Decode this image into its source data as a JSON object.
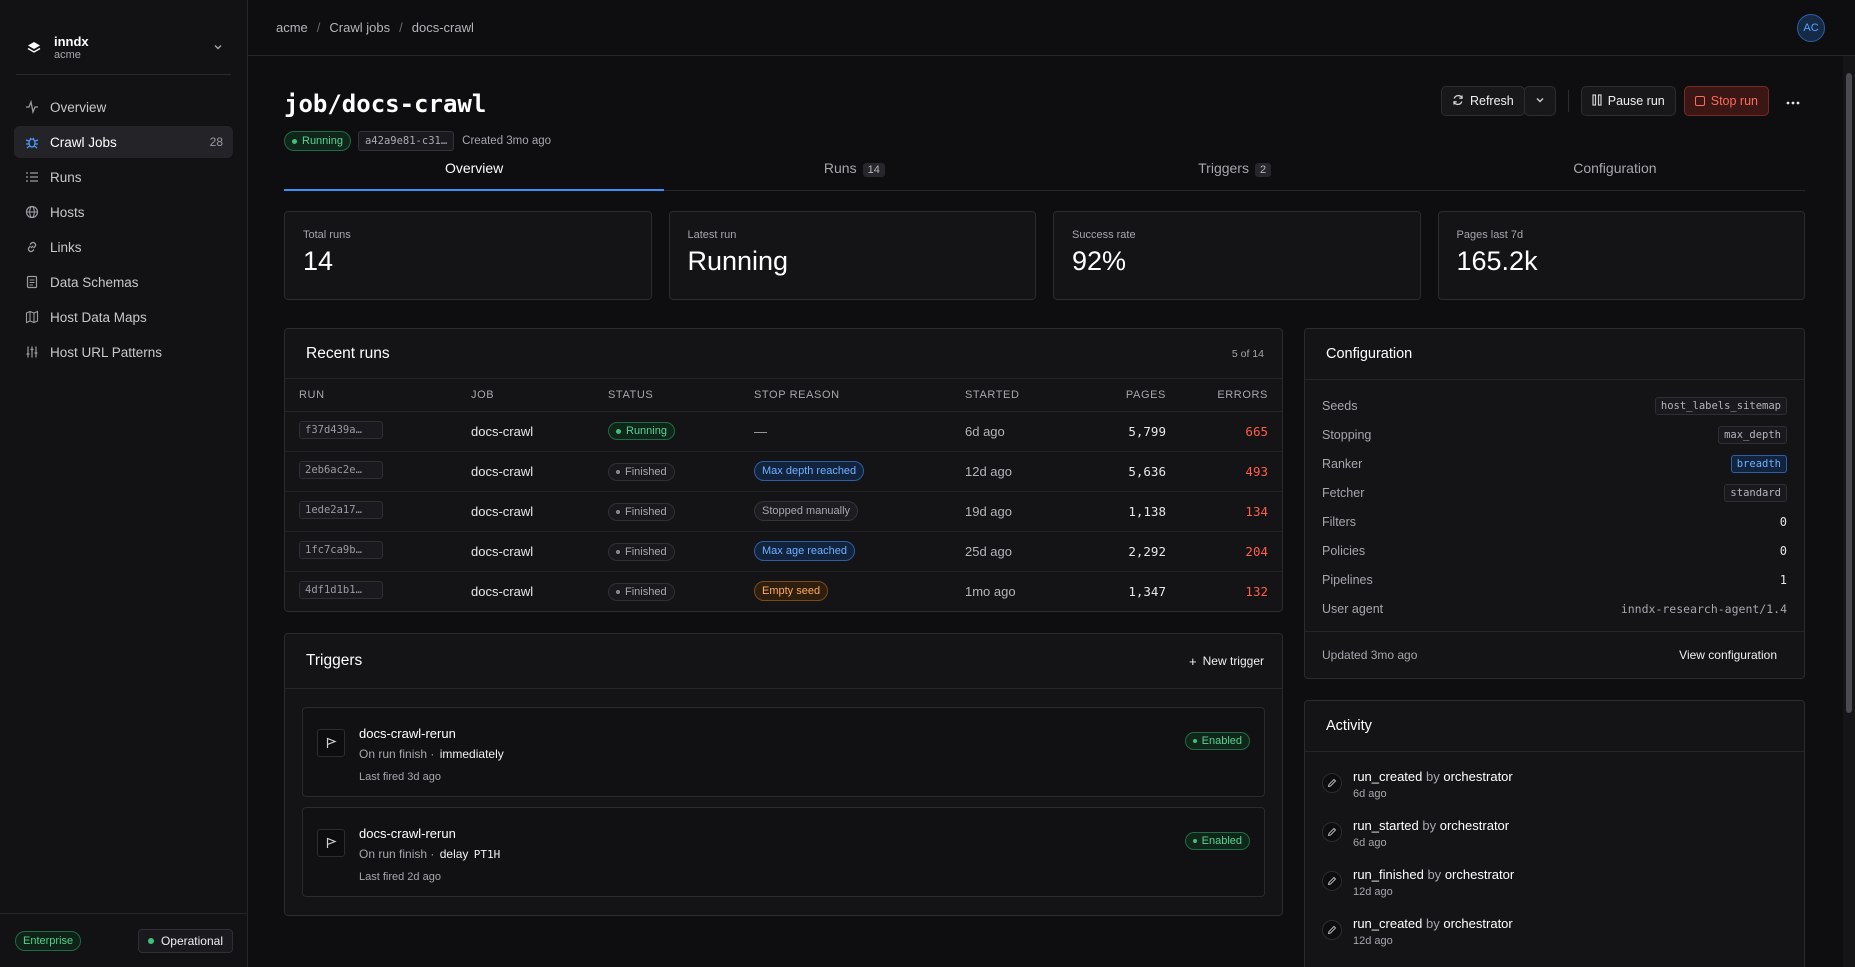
{
  "org": {
    "name": "inndx",
    "sub": "acme"
  },
  "nav": [
    {
      "label": "Overview",
      "icon": "activity-icon"
    },
    {
      "label": "Crawl Jobs",
      "icon": "bug-icon",
      "count": "28",
      "active": true
    },
    {
      "label": "Runs",
      "icon": "list-icon"
    },
    {
      "label": "Hosts",
      "icon": "globe-icon"
    },
    {
      "label": "Links",
      "icon": "link-icon"
    },
    {
      "label": "Data Schemas",
      "icon": "document-icon"
    },
    {
      "label": "Host Data Maps",
      "icon": "map-icon"
    },
    {
      "label": "Host URL Patterns",
      "icon": "sliders-icon"
    }
  ],
  "footer": {
    "plan": "Enterprise",
    "status": "Operational"
  },
  "breadcrumbs": [
    "acme",
    "Crawl jobs",
    "docs-crawl"
  ],
  "avatar": "AC",
  "page": {
    "title": "job/docs-crawl",
    "status": "Running",
    "hash": "a42a9e81-c31…",
    "created": "Created 3mo ago"
  },
  "actions": {
    "refresh": "Refresh",
    "pause": "Pause run",
    "stop": "Stop run"
  },
  "tabs": [
    {
      "label": "Overview",
      "count": ""
    },
    {
      "label": "Runs",
      "count": "14"
    },
    {
      "label": "Triggers",
      "count": "2"
    },
    {
      "label": "Configuration",
      "count": ""
    }
  ],
  "stats": [
    {
      "label": "Total runs",
      "value": "14"
    },
    {
      "label": "Latest run",
      "value": "Running"
    },
    {
      "label": "Success rate",
      "value": "92%"
    },
    {
      "label": "Pages last 7d",
      "value": "165.2k"
    }
  ],
  "recent_runs": {
    "title": "Recent runs",
    "count_label": "5 of 14",
    "columns": [
      "RUN",
      "JOB",
      "STATUS",
      "STOP REASON",
      "STARTED",
      "PAGES",
      "ERRORS"
    ],
    "rows": [
      {
        "run": "f37d439a…",
        "job": "docs-crawl",
        "status": "Running",
        "reason": "—",
        "reason_style": "none",
        "started": "6d ago",
        "pages": "5,799",
        "errors": "665"
      },
      {
        "run": "2eb6ac2e…",
        "job": "docs-crawl",
        "status": "Finished",
        "reason": "Max depth reached",
        "reason_style": "blue",
        "started": "12d ago",
        "pages": "5,636",
        "errors": "493"
      },
      {
        "run": "1ede2a17…",
        "job": "docs-crawl",
        "status": "Finished",
        "reason": "Stopped manually",
        "reason_style": "grey",
        "started": "19d ago",
        "pages": "1,138",
        "errors": "134"
      },
      {
        "run": "1fc7ca9b…",
        "job": "docs-crawl",
        "status": "Finished",
        "reason": "Max age reached",
        "reason_style": "blue",
        "started": "25d ago",
        "pages": "2,292",
        "errors": "204"
      },
      {
        "run": "4df1d1b1…",
        "job": "docs-crawl",
        "status": "Finished",
        "reason": "Empty seed",
        "reason_style": "orange",
        "started": "1mo ago",
        "pages": "1,347",
        "errors": "132"
      }
    ]
  },
  "triggers": {
    "title": "Triggers",
    "new_label": "New trigger",
    "items": [
      {
        "name": "docs-crawl-rerun",
        "when": "On run finish",
        "detail": "immediately",
        "detail_mono": "",
        "last": "Last fired 3d ago",
        "status": "Enabled"
      },
      {
        "name": "docs-crawl-rerun",
        "when": "On run finish",
        "detail": "delay",
        "detail_mono": "PT1H",
        "last": "Last fired 2d ago",
        "status": "Enabled"
      }
    ]
  },
  "configuration": {
    "title": "Configuration",
    "rows": [
      {
        "key": "Seeds",
        "value": "host_labels_sitemap",
        "style": "chip"
      },
      {
        "key": "Stopping",
        "value": "max_depth",
        "style": "chip"
      },
      {
        "key": "Ranker",
        "value": "breadth",
        "style": "chip-blue"
      },
      {
        "key": "Fetcher",
        "value": "standard",
        "style": "chip"
      },
      {
        "key": "Filters",
        "value": "0",
        "style": "plain"
      },
      {
        "key": "Policies",
        "value": "0",
        "style": "plain"
      },
      {
        "key": "Pipelines",
        "value": "1",
        "style": "plain"
      },
      {
        "key": "User agent",
        "value": "inndx-research-agent/1.4",
        "style": "ua"
      }
    ],
    "updated": "Updated 3mo ago",
    "view_label": "View configuration"
  },
  "activity": {
    "title": "Activity",
    "items": [
      {
        "event": "run_created",
        "by": "by",
        "actor": "orchestrator",
        "time": "6d ago"
      },
      {
        "event": "run_started",
        "by": "by",
        "actor": "orchestrator",
        "time": "6d ago"
      },
      {
        "event": "run_finished",
        "by": "by",
        "actor": "orchestrator",
        "time": "12d ago"
      },
      {
        "event": "run_created",
        "by": "by",
        "actor": "orchestrator",
        "time": "12d ago"
      }
    ]
  }
}
